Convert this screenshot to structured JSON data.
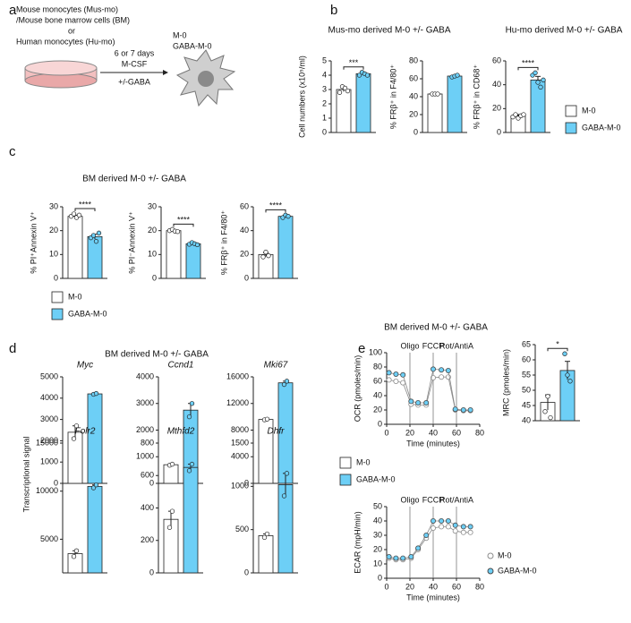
{
  "panel_labels": [
    "a",
    "b",
    "c",
    "d",
    "e"
  ],
  "panel_titles": [
    "Mus-mo derived M-0 +/- GABA",
    "Hu-mo derived M-0 +/- GABA",
    "BM derived M-0 +/- GABA",
    "BM derived M-0 +/- GABA",
    "BM derived M-0 +/- GABA"
  ],
  "groups": [
    {
      "name": "M-0",
      "color": "#ffffff"
    },
    {
      "name": "GABA-M-0",
      "color": "#6dcff6"
    }
  ],
  "diagram": {
    "source_lines": [
      "Mouse monocytes (Mus-mo)",
      "/Mouse bone marrow cells (BM)",
      "or",
      "Human monocytes (Hu-mo)"
    ],
    "arrow_lines": [
      "6 or 7 days",
      "M-CSF",
      "+/-GABA"
    ],
    "outputs": [
      "M-0",
      "GABA-M-0"
    ]
  },
  "shared_ylabel": "Transcriptional signal",
  "chart_data": [
    {
      "type": "bar",
      "ylabel": "Cell numbers (x10⁵/ml)",
      "ylim": [
        0,
        5
      ],
      "yticks": [
        0,
        1,
        2,
        3,
        4,
        5
      ],
      "values": [
        3.0,
        4.1
      ],
      "errors": [
        0.15,
        0.1
      ],
      "points": [
        [
          2.8,
          3.2,
          3.1,
          2.9
        ],
        [
          4.0,
          4.2,
          4.1,
          4.0
        ]
      ],
      "significance": "***"
    },
    {
      "type": "bar",
      "ylabel": "% FRβ⁺ in F4/80⁺",
      "ylim": [
        0,
        80
      ],
      "yticks": [
        0,
        20,
        40,
        60,
        80
      ],
      "values": [
        43,
        63
      ],
      "errors": [
        0.5,
        1
      ],
      "points": [
        [
          43,
          43,
          43
        ],
        [
          62,
          63,
          64
        ]
      ]
    },
    {
      "type": "bar",
      "ylabel": "% FRβ⁺ in CD68⁺",
      "ylim": [
        0,
        60
      ],
      "yticks": [
        0,
        20,
        40,
        60
      ],
      "values": [
        14,
        44
      ],
      "errors": [
        1,
        3
      ],
      "points": [
        [
          13,
          15,
          12,
          14,
          15
        ],
        [
          48,
          50,
          42,
          38,
          44
        ]
      ],
      "significance": "****"
    },
    {
      "type": "bar",
      "ylabel": "% PI⁺Annexin V⁺",
      "ylim": [
        0,
        30
      ],
      "yticks": [
        0,
        10,
        20,
        30
      ],
      "values": [
        26,
        17.5
      ],
      "errors": [
        0.5,
        1
      ],
      "points": [
        [
          26,
          27,
          25.5,
          26.5
        ],
        [
          17,
          18,
          15.5,
          19
        ]
      ],
      "significance": "****"
    },
    {
      "type": "bar",
      "ylabel": "% PI⁻Annexin V⁺",
      "ylim": [
        0,
        30
      ],
      "yticks": [
        0,
        10,
        20,
        30
      ],
      "values": [
        20,
        14.5
      ],
      "errors": [
        0.3,
        0.4
      ],
      "points": [
        [
          20,
          20.5,
          19.8,
          19.6
        ],
        [
          14.3,
          15,
          14.5,
          14.1
        ]
      ],
      "significance": "****"
    },
    {
      "type": "bar",
      "ylabel": "% FRβ⁺ in F4/80⁺",
      "ylim": [
        0,
        60
      ],
      "yticks": [
        0,
        20,
        40,
        60
      ],
      "values": [
        20,
        52
      ],
      "errors": [
        1.5,
        0.8
      ],
      "points": [
        [
          18,
          22,
          19
        ],
        [
          51,
          53,
          52
        ]
      ],
      "significance": "****"
    },
    {
      "type": "bar",
      "title": "Myc",
      "ylim": [
        0,
        5000
      ],
      "yticks": [
        0,
        1000,
        2000,
        3000,
        4000,
        5000
      ],
      "values": [
        2400,
        4200
      ],
      "errors": [
        300,
        30
      ],
      "points": [
        [
          2100,
          2700
        ],
        [
          4180,
          4220
        ]
      ]
    },
    {
      "type": "bar",
      "title": "Ccnd1",
      "ylim": [
        0,
        4000
      ],
      "yticks": [
        0,
        1000,
        2000,
        3000,
        4000
      ],
      "values": [
        700,
        2750
      ],
      "errors": [
        30,
        250
      ],
      "points": [
        [
          680,
          720
        ],
        [
          2500,
          3000
        ]
      ]
    },
    {
      "type": "bar",
      "title": "Mki67",
      "ylim": [
        0,
        16000
      ],
      "yticks": [
        0,
        4000,
        8000,
        12000,
        16000
      ],
      "values": [
        9600,
        15100
      ],
      "errors": [
        80,
        250
      ],
      "points": [
        [
          9550,
          9650
        ],
        [
          14850,
          15350
        ]
      ]
    },
    {
      "type": "bar",
      "title": "Folr2",
      "ylim": [
        1500,
        15000
      ],
      "yticks": [
        5000,
        10000,
        15000
      ],
      "values": [
        3500,
        10500
      ],
      "errors": [
        300,
        150
      ],
      "points": [
        [
          3200,
          3800
        ],
        [
          10350,
          10650
        ]
      ]
    },
    {
      "type": "bar",
      "title": "Mthfd2",
      "ylim": [
        0,
        800
      ],
      "yticks": [
        0,
        200,
        400,
        600,
        800
      ],
      "values": [
        330,
        650
      ],
      "errors": [
        50,
        20
      ],
      "points": [
        [
          280,
          380
        ],
        [
          630,
          670
        ]
      ]
    },
    {
      "type": "bar",
      "title": "Dhfr",
      "ylim": [
        0,
        1500
      ],
      "yticks": [
        0,
        500,
        1000,
        1500
      ],
      "values": [
        430,
        1020
      ],
      "errors": [
        20,
        130
      ],
      "points": [
        [
          410,
          450
        ],
        [
          890,
          1150
        ]
      ]
    },
    {
      "type": "line",
      "ylabel": "OCR (pmoles/min)",
      "xlabel": "Time (minutes)",
      "x": [
        2,
        8,
        14,
        21,
        27,
        34,
        40,
        47,
        53,
        59,
        66,
        72
      ],
      "xlim": [
        0,
        80
      ],
      "xticks": [
        0,
        20,
        40,
        60,
        80
      ],
      "ylim": [
        0,
        100
      ],
      "yticks": [
        0,
        20,
        40,
        60,
        80,
        100
      ],
      "injections": [
        {
          "x": 20,
          "label": "Oligo"
        },
        {
          "x": 40,
          "label": "FCCP"
        },
        {
          "x": 60,
          "label": "Rot/AntiA"
        }
      ],
      "series": [
        {
          "color": "#8c8c8c",
          "values": [
            62,
            60,
            58,
            28,
            27,
            27,
            65,
            66,
            66,
            20,
            19,
            19
          ]
        },
        {
          "color": "#6dcff6",
          "values": [
            72,
            70,
            69,
            32,
            30,
            30,
            77,
            76,
            75,
            21,
            20,
            20
          ]
        }
      ]
    },
    {
      "type": "bar",
      "ylabel": "MRC (pmoles/min)",
      "ylim": [
        40,
        65
      ],
      "yticks": [
        40,
        45,
        50,
        55,
        60,
        65
      ],
      "values": [
        46,
        56.5
      ],
      "errors": [
        2.5,
        3
      ],
      "points": [
        [
          43,
          48,
          41
        ],
        [
          62,
          55,
          53
        ]
      ],
      "significance": "*"
    },
    {
      "type": "line",
      "ylabel": "ECAR (mpH/min)",
      "xlabel": "Time (minutes)",
      "x": [
        2,
        8,
        14,
        21,
        27,
        34,
        40,
        47,
        53,
        59,
        66,
        72
      ],
      "xlim": [
        0,
        80
      ],
      "xticks": [
        0,
        20,
        40,
        60,
        80
      ],
      "ylim": [
        0,
        50
      ],
      "yticks": [
        0,
        10,
        20,
        30,
        40,
        50
      ],
      "injections": [
        {
          "x": 20,
          "label": "Oligo"
        },
        {
          "x": 40,
          "label": "FCCP"
        },
        {
          "x": 60,
          "label": "Rot/AntiA"
        }
      ],
      "series": [
        {
          "name": "M-0",
          "color": "#8c8c8c",
          "values": [
            14,
            13,
            13,
            14,
            20,
            28,
            35,
            36,
            36,
            33,
            32,
            32
          ]
        },
        {
          "name": "GABA-M-0",
          "color": "#6dcff6",
          "values": [
            15,
            14,
            14,
            15,
            21,
            30,
            40,
            40,
            40,
            37,
            36,
            36
          ]
        }
      ]
    }
  ]
}
